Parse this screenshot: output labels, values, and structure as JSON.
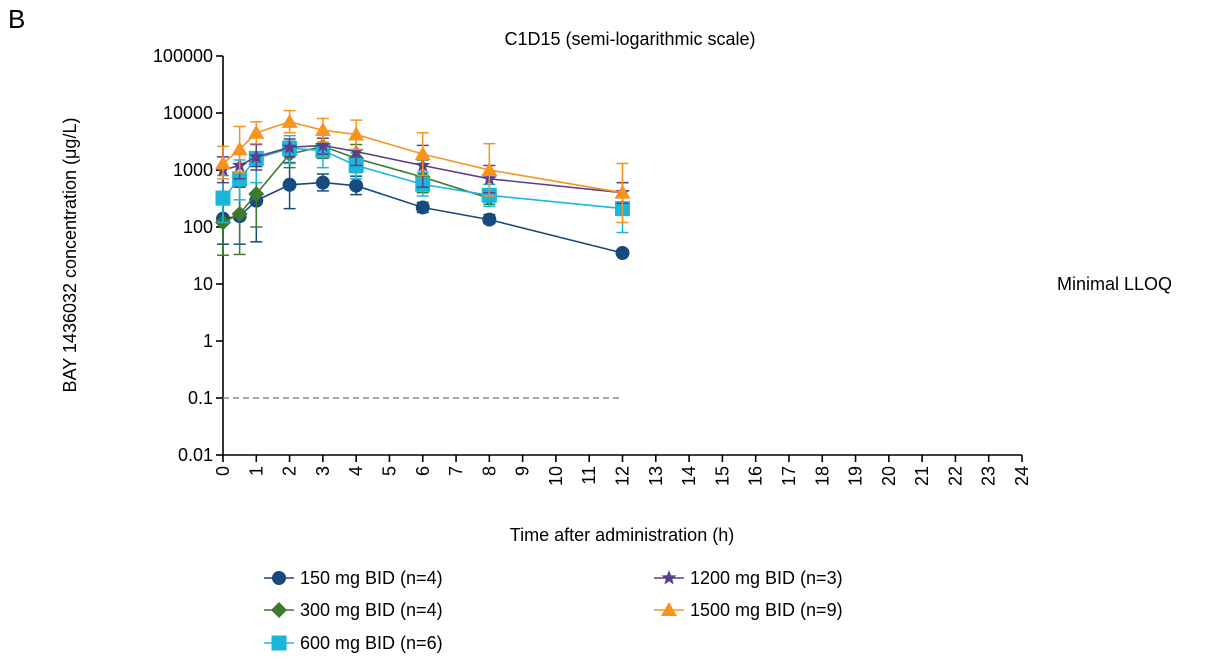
{
  "panel_label": "B",
  "chart_data": {
    "type": "line",
    "title": "C1D15 (semi-logarithmic scale)",
    "xlabel": "Time after administration (h)",
    "ylabel": "BAY 1436032 concentration (μg/L)",
    "y_scale": "log",
    "ylim": [
      0.01,
      100000
    ],
    "xlim": [
      0,
      24
    ],
    "x_ticks": [
      0,
      1,
      2,
      3,
      4,
      5,
      6,
      7,
      8,
      9,
      10,
      11,
      12,
      13,
      14,
      15,
      16,
      17,
      18,
      19,
      20,
      21,
      22,
      23,
      24
    ],
    "y_ticks": [
      {
        "value": 0.01,
        "label": "0.01"
      },
      {
        "value": 0.1,
        "label": "0.1"
      },
      {
        "value": 1,
        "label": "1"
      },
      {
        "value": 10,
        "label": "10"
      },
      {
        "value": 100,
        "label": "100"
      },
      {
        "value": 1000,
        "label": "1000"
      },
      {
        "value": 10000,
        "label": "10000"
      },
      {
        "value": 100000,
        "label": "100000"
      }
    ],
    "reference_line": {
      "value": 0.1,
      "x_range": [
        0,
        12
      ],
      "label": "Minimal LLOQ",
      "style": "dashed",
      "color": "#888888"
    },
    "legend_placement": "bottom",
    "series": [
      {
        "name": "150 mg BID (n=4)",
        "color": "#174a7e",
        "marker": "circle",
        "points": [
          {
            "x": 0,
            "y": 140,
            "hi": 420,
            "lo": 50
          },
          {
            "x": 0.5,
            "y": 155,
            "hi": 500,
            "lo": 50
          },
          {
            "x": 1,
            "y": 290,
            "hi": 1150,
            "lo": 55
          },
          {
            "x": 2,
            "y": 550,
            "hi": 1350,
            "lo": 210
          },
          {
            "x": 3,
            "y": 600,
            "hi": 850,
            "lo": 430
          },
          {
            "x": 4,
            "y": 530,
            "hi": 780,
            "lo": 370
          },
          {
            "x": 6,
            "y": 220,
            "hi": 270,
            "lo": 180
          },
          {
            "x": 8,
            "y": 135,
            "hi": 165,
            "lo": 115
          },
          {
            "x": 12,
            "y": 35,
            "hi": 38,
            "lo": 32
          }
        ]
      },
      {
        "name": "300 mg BID (n=4)",
        "color": "#3d7a2f",
        "marker": "diamond",
        "points": [
          {
            "x": 0,
            "y": 120,
            "hi": 400,
            "lo": 32
          },
          {
            "x": 0.5,
            "y": 170,
            "hi": 900,
            "lo": 33
          },
          {
            "x": 1,
            "y": 380,
            "hi": 1700,
            "lo": 100
          },
          {
            "x": 2,
            "y": 1900,
            "hi": 3200,
            "lo": 1100
          },
          {
            "x": 3,
            "y": 2600,
            "hi": 4200,
            "lo": 1600
          },
          {
            "x": 4,
            "y": 1600,
            "hi": 2800,
            "lo": 900
          },
          {
            "x": 6,
            "y": 750,
            "hi": 1500,
            "lo": 400
          },
          {
            "x": 8,
            "y": 320,
            "hi": 420,
            "lo": 250
          }
        ]
      },
      {
        "name": "600 mg BID (n=6)",
        "color": "#19b8db",
        "marker": "square",
        "points": [
          {
            "x": 0,
            "y": 320,
            "hi": 800,
            "lo": 120
          },
          {
            "x": 0.5,
            "y": 700,
            "hi": 1500,
            "lo": 300
          },
          {
            "x": 1,
            "y": 1600,
            "hi": 4000,
            "lo": 600
          },
          {
            "x": 2,
            "y": 2400,
            "hi": 4000,
            "lo": 1300
          },
          {
            "x": 3,
            "y": 2200,
            "hi": 4500,
            "lo": 1100
          },
          {
            "x": 4,
            "y": 1200,
            "hi": 2000,
            "lo": 700
          },
          {
            "x": 6,
            "y": 560,
            "hi": 900,
            "lo": 350
          },
          {
            "x": 8,
            "y": 360,
            "hi": 560,
            "lo": 230
          },
          {
            "x": 12,
            "y": 210,
            "hi": 600,
            "lo": 80
          }
        ]
      },
      {
        "name": "1200 mg BID (n=3)",
        "color": "#5b3f8c",
        "marker": "star",
        "points": [
          {
            "x": 0,
            "y": 1000,
            "hi": 1700,
            "lo": 600
          },
          {
            "x": 0.5,
            "y": 1200,
            "hi": 2000,
            "lo": 700
          },
          {
            "x": 1,
            "y": 1700,
            "hi": 2800,
            "lo": 1000
          },
          {
            "x": 2,
            "y": 2500,
            "hi": 3500,
            "lo": 1700
          },
          {
            "x": 3,
            "y": 2700,
            "hi": 3600,
            "lo": 1900
          },
          {
            "x": 4,
            "y": 2100,
            "hi": 3600,
            "lo": 1200
          },
          {
            "x": 6,
            "y": 1200,
            "hi": 2700,
            "lo": 500
          },
          {
            "x": 8,
            "y": 700,
            "hi": 1200,
            "lo": 400
          },
          {
            "x": 12,
            "y": 400,
            "hi": 600,
            "lo": 260
          }
        ]
      },
      {
        "name": "1500 mg BID (n=9)",
        "color": "#f7941d",
        "marker": "triangle",
        "points": [
          {
            "x": 0,
            "y": 1300,
            "hi": 2600,
            "lo": 700
          },
          {
            "x": 0.5,
            "y": 2300,
            "hi": 5800,
            "lo": 900
          },
          {
            "x": 1,
            "y": 4500,
            "hi": 7000,
            "lo": 2900
          },
          {
            "x": 2,
            "y": 7000,
            "hi": 11000,
            "lo": 4500
          },
          {
            "x": 3,
            "y": 5000,
            "hi": 8000,
            "lo": 3100
          },
          {
            "x": 4,
            "y": 4200,
            "hi": 7500,
            "lo": 2300
          },
          {
            "x": 6,
            "y": 1900,
            "hi": 4500,
            "lo": 800
          },
          {
            "x": 8,
            "y": 1000,
            "hi": 2900,
            "lo": 350
          },
          {
            "x": 12,
            "y": 400,
            "hi": 1300,
            "lo": 120
          }
        ]
      }
    ]
  }
}
